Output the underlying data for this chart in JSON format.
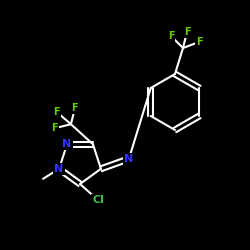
{
  "bg_color": "#000000",
  "bond_color": "#ffffff",
  "atom_colors": {
    "F": "#66cc00",
    "N": "#3333ff",
    "Cl": "#44bb44",
    "C": "#ffffff"
  },
  "bond_width": 1.5,
  "font_size_atom": 8,
  "font_size_small": 7
}
